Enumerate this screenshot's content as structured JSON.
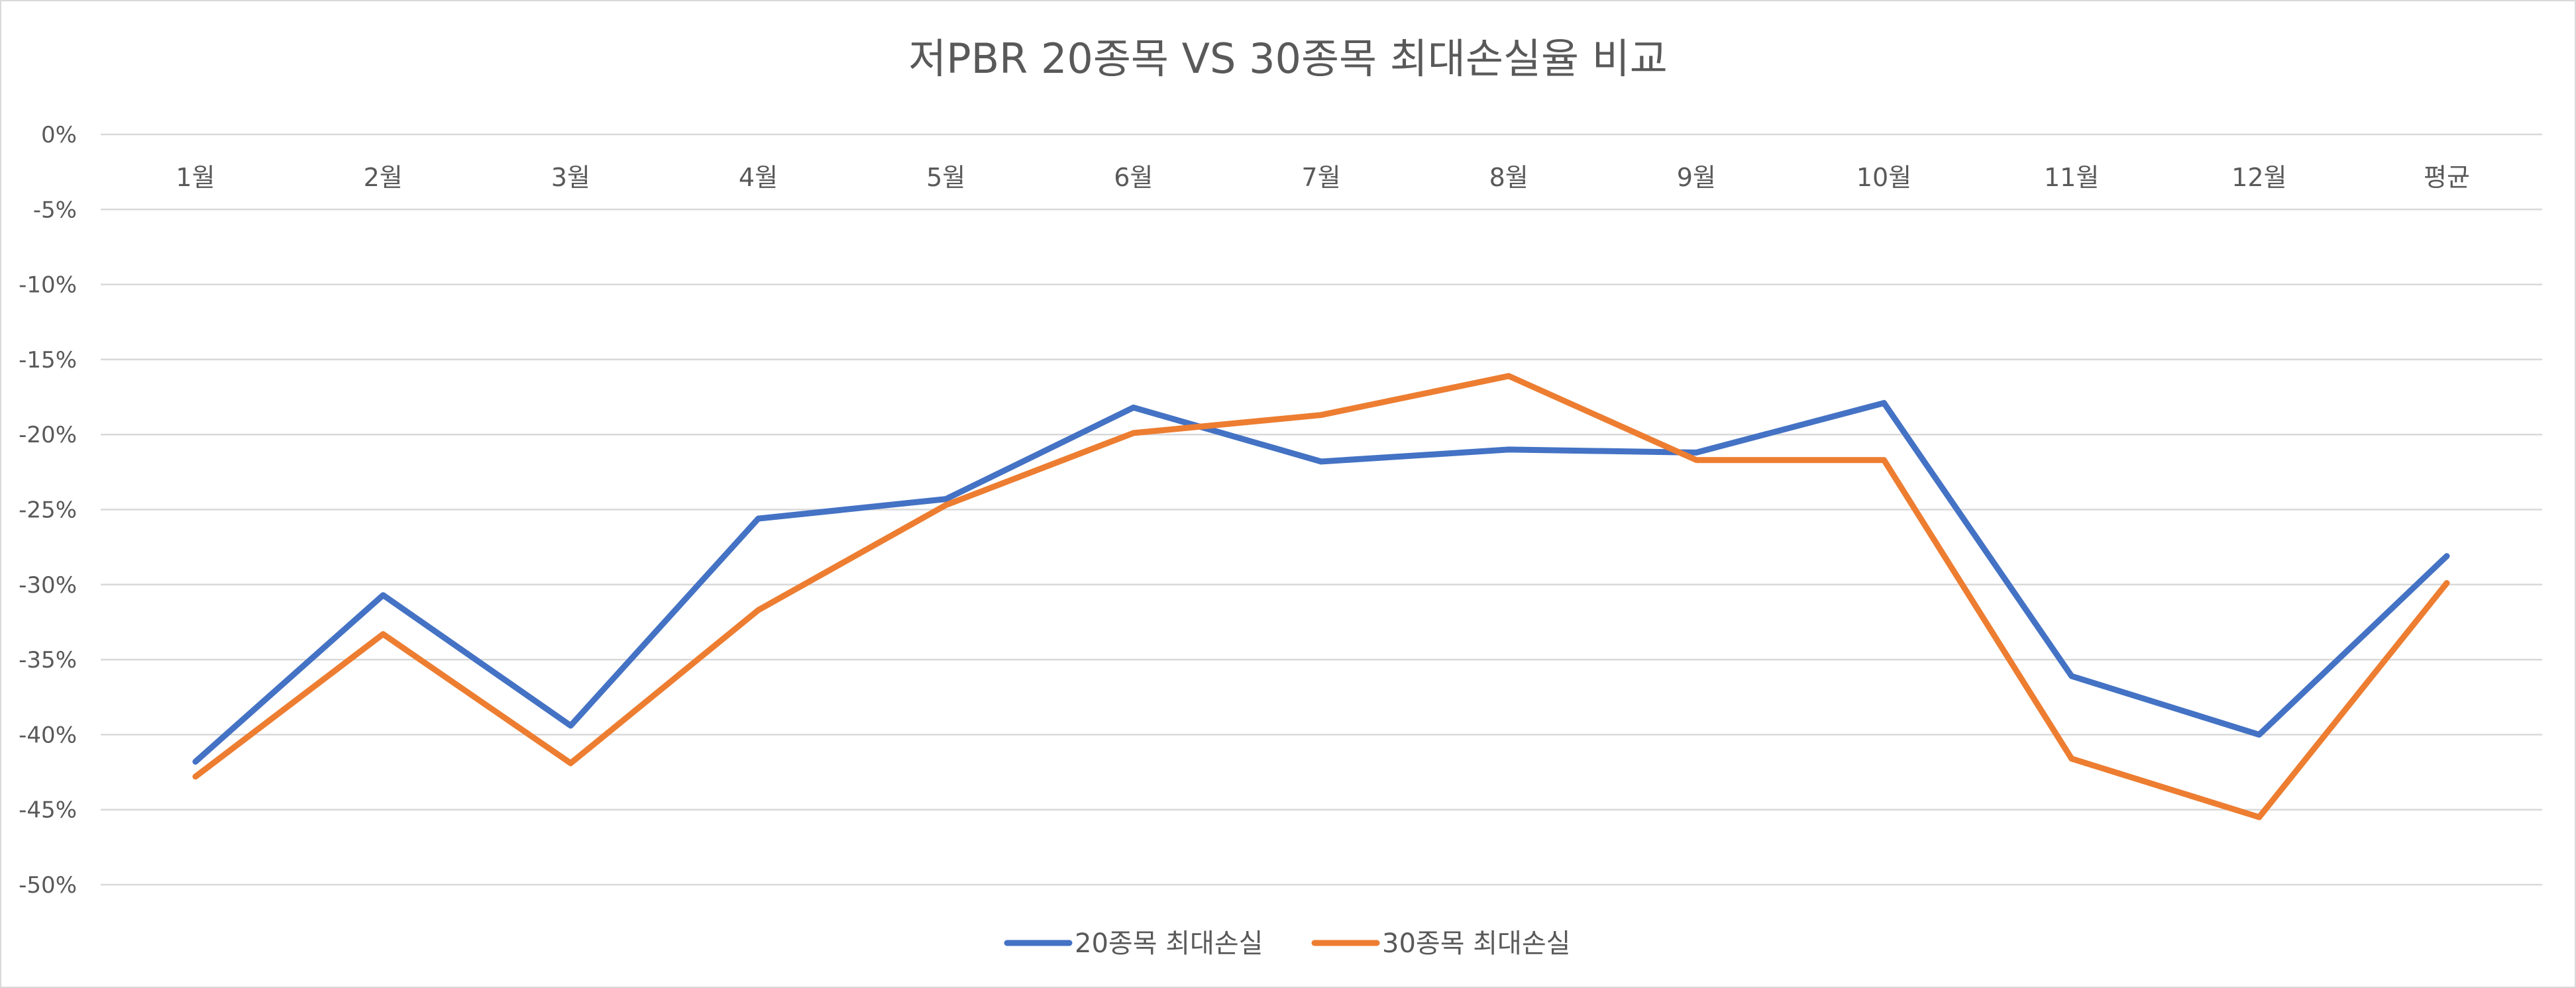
{
  "chart_data": {
    "type": "line",
    "title": "저PBR 20종목 VS 30종목 최대손실율 비교",
    "categories": [
      "1월",
      "2월",
      "3월",
      "4월",
      "5월",
      "6월",
      "7월",
      "8월",
      "9월",
      "10월",
      "11월",
      "12월",
      "평균"
    ],
    "ylim": [
      -50,
      0
    ],
    "y_ticks": [
      0,
      -5,
      -10,
      -15,
      -20,
      -25,
      -30,
      -35,
      -40,
      -45,
      -50
    ],
    "y_tick_labels": [
      "0%",
      "-5%",
      "-10%",
      "-15%",
      "-20%",
      "-25%",
      "-30%",
      "-35%",
      "-40%",
      "-45%",
      "-50%"
    ],
    "grid": true,
    "legend_position": "bottom",
    "series": [
      {
        "name": "20종목 최대손실",
        "color": "#4472C4",
        "values": [
          -41.8,
          -30.7,
          -39.4,
          -25.6,
          -24.3,
          -18.2,
          -21.8,
          -21.0,
          -21.2,
          -17.9,
          -36.1,
          -40.0,
          -28.1
        ]
      },
      {
        "name": "30종목 최대손실",
        "color": "#ED7D31",
        "values": [
          -42.8,
          -33.3,
          -41.9,
          -31.7,
          -24.7,
          -19.9,
          -18.7,
          -16.1,
          -21.7,
          -21.7,
          -41.6,
          -45.5,
          -29.9
        ]
      }
    ]
  }
}
